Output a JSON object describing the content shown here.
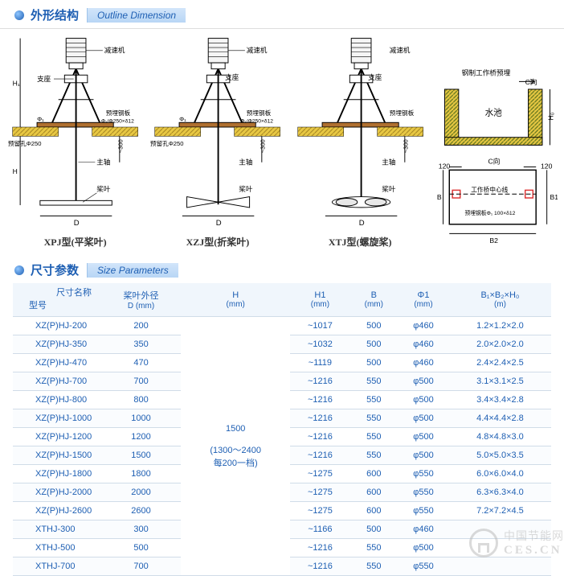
{
  "section_outline": {
    "cn": "外形结构",
    "en": "Outline Dimension"
  },
  "section_size": {
    "cn": "尺寸参数",
    "en": "Size Parameters"
  },
  "diagram_labels": {
    "reducer": "减速机",
    "seat": "支座",
    "plate": "预埋钢板",
    "plate_spec": "Φ₁/Φ250×δ12",
    "hole": "预留孔Φ250",
    "shaft": "主轴",
    "blade": "桨叶",
    "dim_D": "D",
    "dim_H": "H",
    "dim_H1": "H₁",
    "dim_phi1": "Φ₁",
    "dim_300": "~300",
    "dim_120": "120",
    "dim_C": "C向",
    "dim_B": "B",
    "dim_B1": "B1",
    "dim_B2": "B2",
    "pool": "水池",
    "bridge_top": "钢制工作桥预埋",
    "bridge_center": "工作桥中心线",
    "plate_spec2": "预埋钢板Φ₁ 100×δ12",
    "dim_H0": "H₀"
  },
  "diagram_captions": {
    "xpj": "XPJ型(平桨叶)",
    "xzj": "XZJ型(折桨叶)",
    "xtj": "XTJ型(螺旋桨)"
  },
  "table": {
    "head_name_cn": "尺寸名称",
    "head_model_cn": "型号",
    "columns": [
      {
        "label": "桨叶外径",
        "sub": "D (mm)"
      },
      {
        "label": "H",
        "sub": "(mm)"
      },
      {
        "label": "H1",
        "sub": "(mm)"
      },
      {
        "label": "B",
        "sub": "(mm)"
      },
      {
        "label": "Φ1",
        "sub": "(mm)"
      },
      {
        "label": "B₁×B₂×H₀",
        "sub": "(m)"
      }
    ],
    "H_merged": "1500\n\n(1300～2400\n每200一档)",
    "rows": [
      {
        "model": "XZ(P)HJ-200",
        "D": "200",
        "H1": "~1017",
        "B": "500",
        "phi": "φ460",
        "bbh": "1.2×1.2×2.0"
      },
      {
        "model": "XZ(P)HJ-350",
        "D": "350",
        "H1": "~1032",
        "B": "500",
        "phi": "φ460",
        "bbh": "2.0×2.0×2.0"
      },
      {
        "model": "XZ(P)HJ-470",
        "D": "470",
        "H1": "~1119",
        "B": "500",
        "phi": "φ460",
        "bbh": "2.4×2.4×2.5"
      },
      {
        "model": "XZ(P)HJ-700",
        "D": "700",
        "H1": "~1216",
        "B": "550",
        "phi": "φ500",
        "bbh": "3.1×3.1×2.5"
      },
      {
        "model": "XZ(P)HJ-800",
        "D": "800",
        "H1": "~1216",
        "B": "550",
        "phi": "φ500",
        "bbh": "3.4×3.4×2.8"
      },
      {
        "model": "XZ(P)HJ-1000",
        "D": "1000",
        "H1": "~1216",
        "B": "550",
        "phi": "φ500",
        "bbh": "4.4×4.4×2.8"
      },
      {
        "model": "XZ(P)HJ-1200",
        "D": "1200",
        "H1": "~1216",
        "B": "550",
        "phi": "φ500",
        "bbh": "4.8×4.8×3.0"
      },
      {
        "model": "XZ(P)HJ-1500",
        "D": "1500",
        "H1": "~1216",
        "B": "550",
        "phi": "φ500",
        "bbh": "5.0×5.0×3.5"
      },
      {
        "model": "XZ(P)HJ-1800",
        "D": "1800",
        "H1": "~1275",
        "B": "600",
        "phi": "φ550",
        "bbh": "6.0×6.0×4.0"
      },
      {
        "model": "XZ(P)HJ-2000",
        "D": "2000",
        "H1": "~1275",
        "B": "600",
        "phi": "φ550",
        "bbh": "6.3×6.3×4.0"
      },
      {
        "model": "XZ(P)HJ-2600",
        "D": "2600",
        "H1": "~1275",
        "B": "600",
        "phi": "φ550",
        "bbh": "7.2×7.2×4.5"
      },
      {
        "model": "XTHJ-300",
        "D": "300",
        "H1": "~1166",
        "B": "500",
        "phi": "φ460",
        "bbh": ""
      },
      {
        "model": "XTHJ-500",
        "D": "500",
        "H1": "~1216",
        "B": "550",
        "phi": "φ500",
        "bbh": ""
      },
      {
        "model": "XTHJ-700",
        "D": "700",
        "H1": "~1216",
        "B": "550",
        "phi": "φ550",
        "bbh": ""
      }
    ]
  },
  "watermark": {
    "line1": "中国节能网",
    "line2": "CES.CN"
  },
  "style": {
    "primary_blue": "#1e5fb3",
    "hatch_yellow": "#e8c843",
    "hatch_green": "#a0a050",
    "plate_brown": "#b07030",
    "line_black": "#000000",
    "table_border": "#d0dce8"
  }
}
